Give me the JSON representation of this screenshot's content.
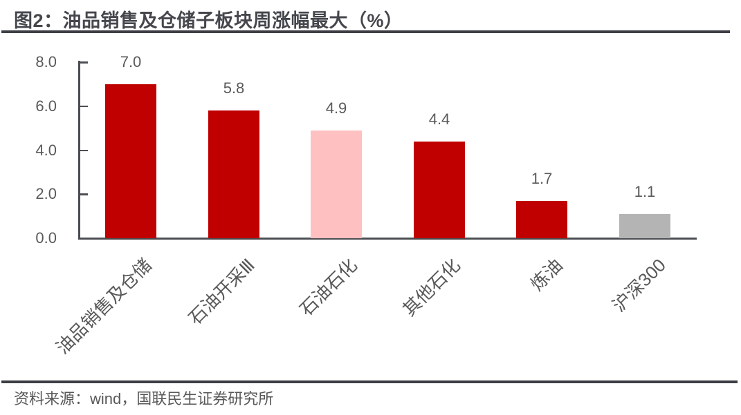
{
  "title": {
    "text": "图2：油品销售及仓储子板块周涨幅最大（%）"
  },
  "source": {
    "text": "资料来源：wind，国联民生证券研究所"
  },
  "chart_data": {
    "type": "bar",
    "title": "图2：油品销售及仓储子板块周涨幅最大（%）",
    "categories": [
      "油品销售及仓储",
      "石油开采Ⅲ",
      "石油石化",
      "其他石化",
      "炼油",
      "沪深300"
    ],
    "values": [
      7.0,
      5.8,
      4.9,
      4.4,
      1.7,
      1.1
    ],
    "value_labels": [
      "7.0",
      "5.8",
      "4.9",
      "4.4",
      "1.7",
      "1.1"
    ],
    "bar_colors": [
      "#C00000",
      "#C00000",
      "#FFC0C2",
      "#C00000",
      "#C00000",
      "#B4B4B4"
    ],
    "xlabel": "",
    "ylabel": "",
    "ylim": [
      0,
      8
    ],
    "ytick_values": [
      8,
      6,
      4,
      2,
      0
    ],
    "ytick_labels": [
      "8.0",
      "6.0",
      "4.0",
      "2.0",
      "0.0"
    ],
    "grid": false,
    "legend": false,
    "xtick_rotation_deg": 45
  },
  "colors": {
    "bar_red": "#C00000",
    "bar_pink": "#FFC0C2",
    "bar_gray": "#B4B4B4",
    "title_text": "#45474D",
    "chart_text": "#595959",
    "rule": "#3C3E44",
    "axis": "#4A4D52"
  }
}
